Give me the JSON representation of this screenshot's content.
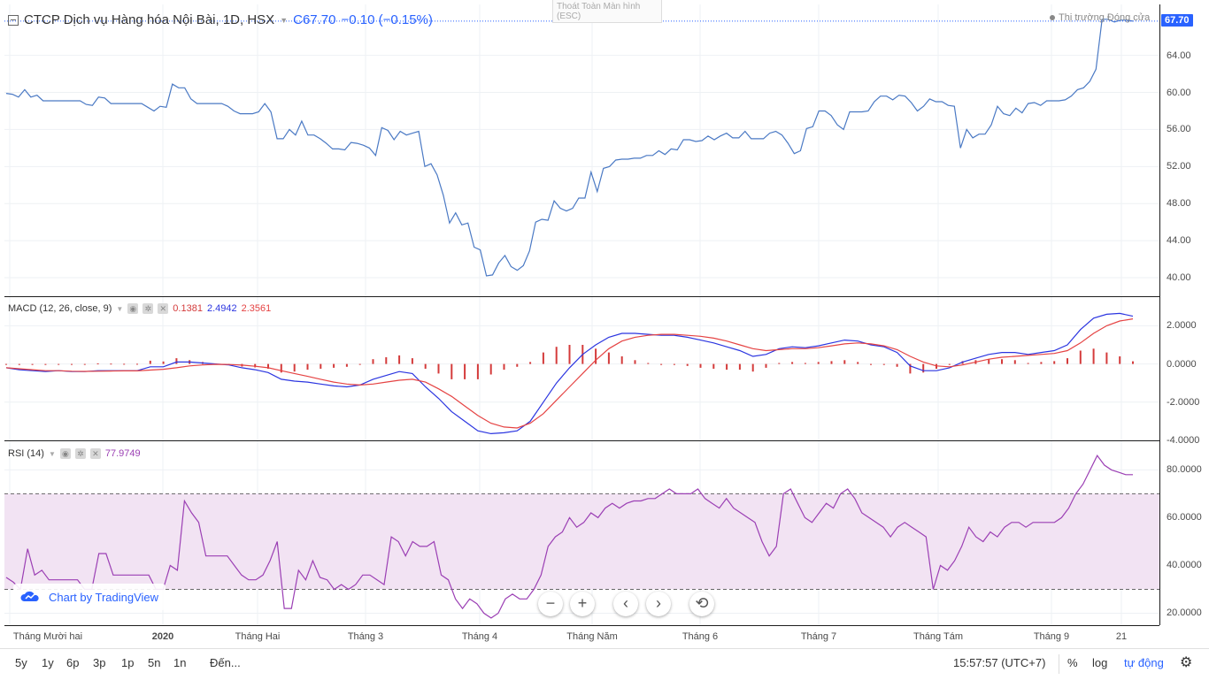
{
  "header": {
    "symbol_title": "CTCP Dịch vụ Hàng hóa Nội Bài, 1D, HSX",
    "last_label": "C67.70",
    "change": "−0.10 (−0.15%)",
    "exit_fullscreen": "Thoát Toàn Màn hình",
    "exit_fullscreen_key": "(ESC)",
    "market_status": "Thị trường Đóng cửa",
    "last_price_tag": "67.70"
  },
  "macd_legend": {
    "name": "MACD (12, 26, close, 9)",
    "hist": "0.1381",
    "macd": "2.4942",
    "signal": "2.3561"
  },
  "rsi_legend": {
    "name": "RSI (14)",
    "value": "77.9749"
  },
  "colors": {
    "price": "#4a79c4",
    "macd": "#2b35e0",
    "signal": "#e54343",
    "hist": "#d43b3b",
    "rsi": "#9b3fb4",
    "rsi_band": "#f2e3f3",
    "accent": "#2962ff"
  },
  "branding": {
    "label": "Chart by TradingView",
    "icon": "tradingview-cloud-icon"
  },
  "nav": {
    "zoom_out": "−",
    "zoom_in": "+",
    "scroll_left": "‹",
    "scroll_right": "›",
    "reset": "⟲"
  },
  "bottom": {
    "ranges": [
      "5y",
      "1y",
      "6p",
      "3p",
      "1p",
      "5n",
      "1n"
    ],
    "goto": "Đến...",
    "clock": "15:57:57 (UTC+7)",
    "percent": "%",
    "log": "log",
    "auto": "tự động",
    "settings_icon": "gear-icon"
  },
  "chart_data": [
    {
      "type": "line",
      "title": "CTCP Dịch vụ Hàng hóa Nội Bài, 1D, HSX",
      "ylim": [
        38.0,
        69.5
      ],
      "yticks": [
        "40.00",
        "44.00",
        "48.00",
        "52.00",
        "56.00",
        "60.00",
        "64.00",
        "67.70"
      ],
      "x_ticks": [
        "Tháng Mười hai",
        "2020",
        "Tháng Hai",
        "Tháng 3",
        "Tháng 4",
        "Tháng Năm",
        "Tháng 6",
        "Tháng 7",
        "Tháng Tám",
        "Tháng 9",
        "21"
      ],
      "series": [
        {
          "name": "Close",
          "values": [
            59.9,
            59.8,
            59.5,
            60.3,
            59.5,
            59.7,
            59.1,
            59.1,
            59.1,
            59.1,
            59.1,
            59.1,
            59.1,
            58.7,
            58.6,
            59.5,
            59.4,
            58.8,
            58.8,
            58.8,
            58.8,
            58.8,
            58.8,
            58.4,
            58.0,
            58.5,
            58.4,
            60.9,
            60.5,
            60.5,
            59.3,
            58.8,
            58.8,
            58.8,
            58.8,
            58.8,
            58.5,
            58.0,
            57.7,
            57.7,
            57.7,
            57.9,
            58.8,
            57.9,
            55.0,
            55.0,
            56.0,
            55.4,
            56.9,
            55.4,
            55.4,
            55.0,
            54.5,
            53.9,
            53.9,
            53.8,
            54.6,
            54.5,
            54.3,
            54.0,
            53.2,
            56.2,
            55.9,
            54.9,
            55.8,
            55.4,
            55.6,
            55.8,
            52.0,
            52.3,
            51.1,
            48.9,
            45.9,
            47.0,
            45.7,
            45.9,
            43.3,
            43.0,
            40.2,
            40.3,
            41.6,
            42.4,
            41.2,
            40.8,
            41.3,
            42.9,
            46.0,
            46.3,
            46.2,
            48.3,
            47.5,
            47.2,
            47.5,
            48.6,
            48.6,
            51.4,
            49.3,
            51.8,
            52.0,
            52.7,
            52.8,
            52.8,
            52.9,
            52.9,
            53.2,
            53.2,
            53.7,
            53.3,
            53.9,
            53.8,
            54.9,
            54.9,
            54.7,
            54.8,
            55.3,
            54.9,
            55.3,
            55.6,
            55.1,
            55.1,
            55.8,
            55.0,
            55.0,
            55.0,
            55.6,
            55.8,
            55.4,
            54.5,
            53.4,
            53.7,
            56.1,
            56.3,
            58.0,
            58.0,
            57.5,
            56.5,
            56.0,
            57.9,
            57.9,
            57.9,
            58.0,
            59.0,
            59.6,
            59.6,
            59.2,
            59.7,
            59.6,
            58.9,
            58.0,
            58.5,
            59.3,
            59.0,
            59.0,
            58.6,
            58.5,
            54.0,
            56.0,
            55.1,
            55.5,
            55.5,
            56.5,
            58.5,
            57.7,
            57.5,
            58.3,
            57.8,
            58.8,
            58.9,
            58.6,
            59.1,
            59.1,
            59.1,
            59.2,
            59.6,
            60.3,
            60.5,
            61.2,
            62.5,
            67.9,
            67.9,
            67.6,
            67.8,
            67.8,
            67.7
          ]
        }
      ]
    },
    {
      "type": "line",
      "title": "MACD (12, 26, close, 9)",
      "ylim": [
        -4.0,
        3.5
      ],
      "yticks": [
        "2.0000",
        "0.0000",
        "-2.0000",
        "-4.0000"
      ],
      "series": [
        {
          "name": "MACD",
          "values": [
            -0.2,
            -0.3,
            -0.35,
            -0.4,
            -0.35,
            -0.4,
            -0.4,
            -0.35,
            -0.35,
            -0.35,
            -0.35,
            -0.15,
            -0.15,
            0.1,
            0.1,
            0.05,
            0,
            -0.05,
            -0.2,
            -0.3,
            -0.45,
            -0.8,
            -0.9,
            -0.95,
            -1.05,
            -1.15,
            -1.2,
            -1.1,
            -0.8,
            -0.6,
            -0.4,
            -0.5,
            -1.2,
            -1.8,
            -2.5,
            -3.0,
            -3.5,
            -3.65,
            -3.6,
            -3.5,
            -3.0,
            -2.0,
            -1.0,
            -0.2,
            0.5,
            1.0,
            1.4,
            1.6,
            1.6,
            1.55,
            1.5,
            1.5,
            1.4,
            1.25,
            1.1,
            0.9,
            0.7,
            0.4,
            0.5,
            0.8,
            0.9,
            0.85,
            0.95,
            1.1,
            1.25,
            1.2,
            1.0,
            0.9,
            0.6,
            -0.1,
            -0.35,
            -0.35,
            -0.2,
            0.1,
            0.3,
            0.5,
            0.6,
            0.6,
            0.5,
            0.6,
            0.7,
            1.0,
            1.8,
            2.4,
            2.6,
            2.65,
            2.5
          ]
        },
        {
          "name": "Signal",
          "values": [
            -0.2,
            -0.25,
            -0.3,
            -0.35,
            -0.35,
            -0.38,
            -0.39,
            -0.38,
            -0.37,
            -0.36,
            -0.36,
            -0.32,
            -0.28,
            -0.2,
            -0.1,
            -0.05,
            -0.02,
            -0.03,
            -0.06,
            -0.12,
            -0.2,
            -0.35,
            -0.5,
            -0.65,
            -0.8,
            -0.95,
            -1.05,
            -1.1,
            -1.05,
            -0.95,
            -0.85,
            -0.8,
            -0.95,
            -1.3,
            -1.7,
            -2.2,
            -2.7,
            -3.1,
            -3.3,
            -3.35,
            -3.1,
            -2.6,
            -1.9,
            -1.2,
            -0.5,
            0.2,
            0.8,
            1.2,
            1.4,
            1.5,
            1.55,
            1.55,
            1.5,
            1.45,
            1.35,
            1.2,
            1.0,
            0.8,
            0.7,
            0.75,
            0.8,
            0.8,
            0.85,
            0.95,
            1.05,
            1.1,
            1.05,
            0.95,
            0.75,
            0.4,
            0.1,
            -0.1,
            -0.15,
            -0.05,
            0.1,
            0.25,
            0.35,
            0.4,
            0.45,
            0.5,
            0.55,
            0.7,
            1.1,
            1.6,
            2.0,
            2.25,
            2.36
          ]
        }
      ]
    },
    {
      "type": "line",
      "title": "RSI (14)",
      "ylim": [
        15,
        92
      ],
      "yticks": [
        "20.0000",
        "40.0000",
        "60.0000",
        "80.0000"
      ],
      "bands": [
        30,
        70
      ],
      "series": [
        {
          "name": "RSI",
          "values": [
            35,
            33,
            30,
            47,
            36,
            38,
            34,
            34,
            34,
            34,
            34,
            30,
            30,
            45,
            45,
            36,
            36,
            36,
            36,
            36,
            36,
            30,
            30,
            40,
            38,
            67,
            62,
            58,
            44,
            44,
            44,
            44,
            40,
            36,
            34,
            34,
            36,
            42,
            50,
            22,
            22,
            38,
            34,
            42,
            35,
            34,
            30,
            32,
            30,
            32,
            36,
            36,
            34,
            32,
            52,
            50,
            44,
            50,
            48,
            48,
            50,
            36,
            34,
            26,
            22,
            26,
            24,
            20,
            18,
            20,
            26,
            28,
            26,
            26,
            30,
            36,
            48,
            52,
            54,
            60,
            56,
            58,
            62,
            60,
            64,
            66,
            64,
            66,
            67,
            67,
            68,
            68,
            70,
            72,
            70,
            70,
            70,
            72,
            68,
            66,
            64,
            68,
            64,
            62,
            60,
            58,
            50,
            44,
            48,
            70,
            72,
            66,
            60,
            58,
            62,
            66,
            64,
            70,
            72,
            68,
            62,
            60,
            58,
            56,
            52,
            56,
            58,
            56,
            54,
            52,
            30,
            40,
            38,
            42,
            48,
            56,
            52,
            50,
            54,
            52,
            56,
            58,
            58,
            56,
            58,
            58,
            58,
            58,
            60,
            64,
            70,
            74,
            80,
            86,
            82,
            80,
            79,
            78,
            78
          ]
        }
      ]
    }
  ]
}
